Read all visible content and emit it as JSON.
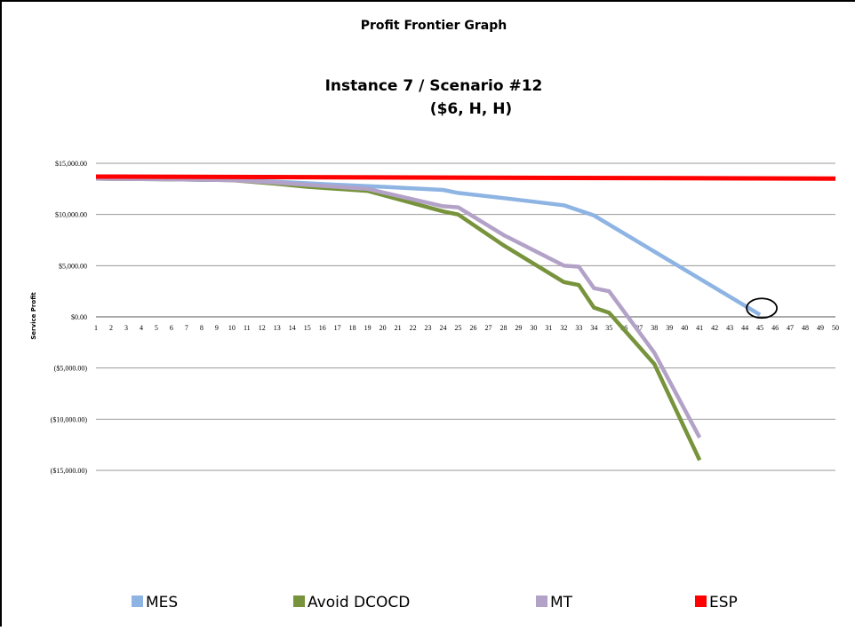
{
  "chart_data": {
    "type": "line",
    "title": "Profit Frontier Graph",
    "subtitle_line1": "Instance 7 / Scenario #12",
    "subtitle_line2": "($6, H, H)",
    "xlabel": "",
    "ylabel": "Service Profit",
    "x": [
      1,
      2,
      3,
      4,
      5,
      6,
      7,
      8,
      9,
      10,
      11,
      12,
      13,
      14,
      15,
      16,
      17,
      18,
      19,
      20,
      21,
      22,
      23,
      24,
      25,
      26,
      27,
      28,
      29,
      30,
      31,
      32,
      33,
      34,
      35,
      36,
      37,
      38,
      39,
      40,
      41,
      42,
      43,
      44,
      45,
      46,
      47,
      48,
      49,
      50
    ],
    "xlim": [
      1,
      50
    ],
    "ylim": [
      -15000,
      15000
    ],
    "yticks": [
      15000,
      10000,
      5000,
      0,
      -5000,
      -10000,
      -15000
    ],
    "ytick_labels": [
      "$15,000.00",
      "$10,000.00",
      "$5,000.00",
      "$0.00",
      "($5,000.00)",
      "($10,000.00)",
      "($15,000.00)"
    ],
    "grid": "horizontal",
    "legend_position": "bottom",
    "series": [
      {
        "name": "MES",
        "color": "#8eb4e3",
        "points": [
          [
            1,
            13500
          ],
          [
            5,
            13450
          ],
          [
            10,
            13350
          ],
          [
            13,
            13200
          ],
          [
            17,
            12900
          ],
          [
            20,
            12700
          ],
          [
            24,
            12400
          ],
          [
            25,
            12100
          ],
          [
            28,
            11600
          ],
          [
            32,
            10900
          ],
          [
            34,
            9900
          ],
          [
            45,
            200
          ]
        ]
      },
      {
        "name": "Avoid DCOCD",
        "color": "#77933c",
        "points": [
          [
            1,
            13500
          ],
          [
            5,
            13450
          ],
          [
            10,
            13350
          ],
          [
            13,
            13000
          ],
          [
            15,
            12700
          ],
          [
            19,
            12300
          ],
          [
            24,
            10300
          ],
          [
            25,
            10000
          ],
          [
            28,
            7000
          ],
          [
            32,
            3400
          ],
          [
            33,
            3100
          ],
          [
            34,
            900
          ],
          [
            35,
            400
          ],
          [
            38,
            -4600
          ],
          [
            41,
            -14000
          ]
        ]
      },
      {
        "name": "MT",
        "color": "#b3a2c7",
        "points": [
          [
            1,
            13500
          ],
          [
            5,
            13450
          ],
          [
            10,
            13350
          ],
          [
            13,
            13100
          ],
          [
            15,
            12900
          ],
          [
            19,
            12500
          ],
          [
            24,
            10800
          ],
          [
            25,
            10700
          ],
          [
            28,
            8000
          ],
          [
            32,
            5000
          ],
          [
            33,
            4900
          ],
          [
            34,
            2800
          ],
          [
            35,
            2500
          ],
          [
            38,
            -3500
          ],
          [
            41,
            -11800
          ]
        ]
      },
      {
        "name": "ESP",
        "color": "#ff0000",
        "points": [
          [
            1,
            13700
          ],
          [
            50,
            13500
          ]
        ]
      }
    ],
    "annotation": {
      "type": "ellipse",
      "x": 45,
      "y": 500,
      "description": "circle marking MES crossing zero"
    }
  }
}
